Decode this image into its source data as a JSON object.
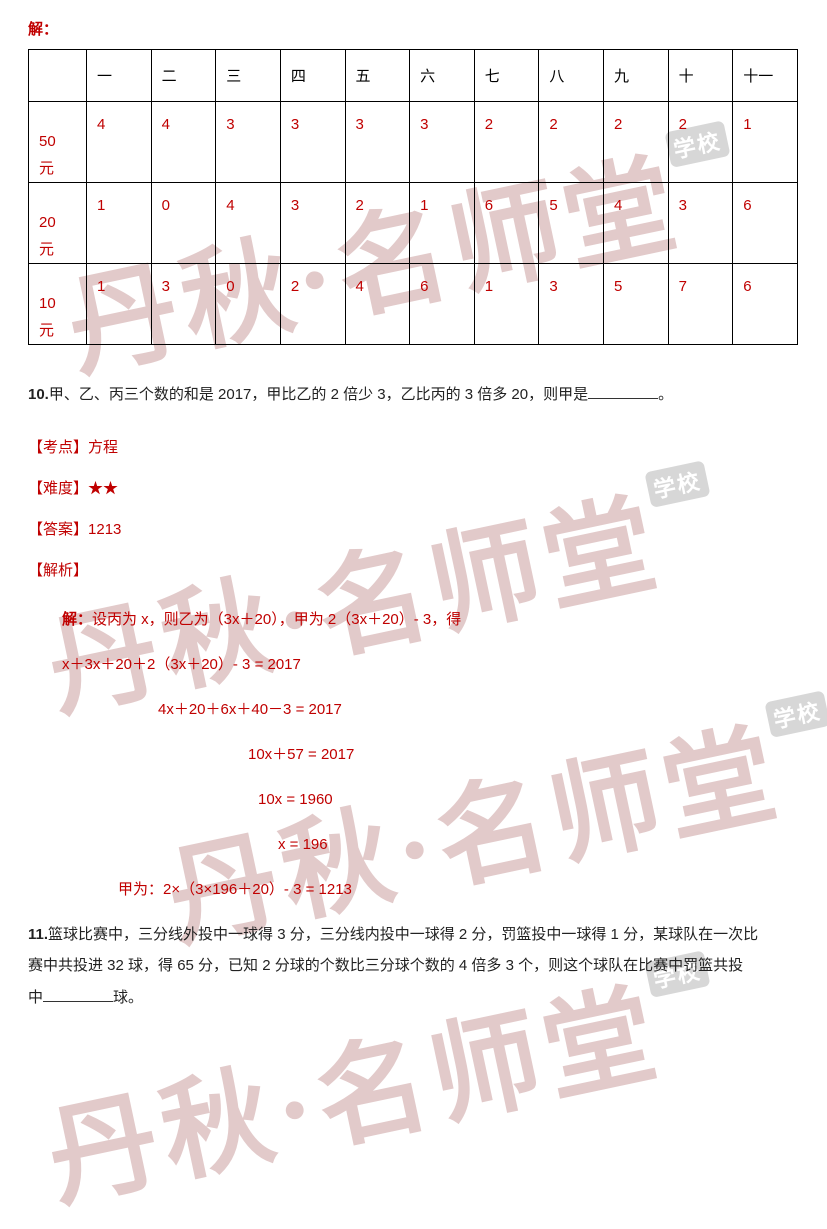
{
  "jie_label": "解：",
  "watermark_text": "丹秋·名师堂",
  "watermark_badge": "学校",
  "table": {
    "headers": [
      "",
      "一",
      "二",
      "三",
      "四",
      "五",
      "六",
      "七",
      "八",
      "九",
      "十",
      "十一"
    ],
    "rows": [
      {
        "label": "50\n元",
        "cells": [
          "4",
          "4",
          "3",
          "3",
          "3",
          "3",
          "2",
          "2",
          "2",
          "2",
          "1"
        ]
      },
      {
        "label": "20\n元",
        "cells": [
          "1",
          "0",
          "4",
          "3",
          "2",
          "1",
          "6",
          "5",
          "4",
          "3",
          "6"
        ]
      },
      {
        "label": "10\n元",
        "cells": [
          "1",
          "3",
          "0",
          "2",
          "4",
          "6",
          "1",
          "3",
          "5",
          "7",
          "6"
        ]
      }
    ],
    "colors": {
      "header": "#000000",
      "body": "#c00000",
      "border": "#000000"
    }
  },
  "q10": {
    "num": "10.",
    "text_a": "甲、乙、丙三个数的和是 2017，甲比乙的 2 倍少 3，乙比丙的 3 倍多 20，则甲是",
    "text_b": "。",
    "tags": {
      "kaodian_l": "【考点】",
      "kaodian_v": "方程",
      "nandu_l": "【难度】",
      "nandu_v": "★★",
      "daan_l": "【答案】",
      "daan_v": "1213",
      "jiexi_l": "【解析】"
    },
    "sol": {
      "jie_prefix": "解：",
      "line1": "设丙为 x，则乙为（3x＋20），甲为 2（3x＋20）- 3，得",
      "line2": "x＋3x＋20＋2（3x＋20）- 3 = 2017",
      "line3": "4x＋20＋6x＋40－3 = 2017",
      "line4": "10x＋57 = 2017",
      "line5": "10x = 1960",
      "line6": "x = 196",
      "line7": "甲为：2×（3×196＋20）- 3 = 1213"
    },
    "indents": {
      "line3": 130,
      "line4": 220,
      "line5": 230,
      "line6": 250,
      "line7": 90
    }
  },
  "q11": {
    "num": "11.",
    "text_a": "篮球比赛中，三分线外投中一球得 3 分，三分线内投中一球得 2 分，罚篮投中一球得 1 分，某球队在一次比",
    "text_b": "赛中共投进 32 球，得 65 分，已知 2 分球的个数比三分球个数的 4 倍多 3 个，则这个球队在比赛中罚篮共投",
    "text_c_pre": "中",
    "text_c_post": "球。"
  }
}
